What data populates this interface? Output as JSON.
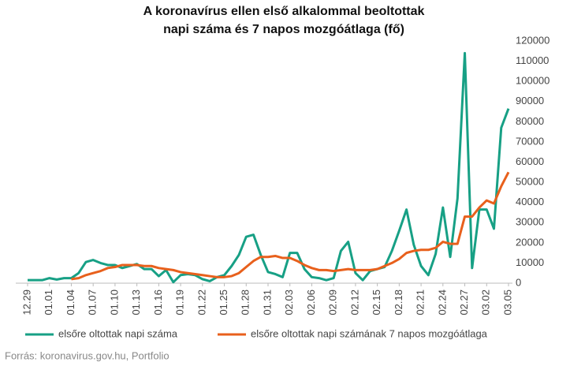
{
  "chart_data": {
    "type": "line",
    "title": [
      "A koronavírus ellen első alkalommal beoltottak",
      "napi száma és 7 napos mozgóátlaga (fő)"
    ],
    "source": "Forrás: koronavirus.gov.hu, Portfolio",
    "categories": [
      "12.29",
      null,
      null,
      "01.01",
      null,
      null,
      "01.04",
      null,
      null,
      "01.07",
      null,
      null,
      "01.10",
      null,
      null,
      "01.13",
      null,
      null,
      "01.16",
      null,
      null,
      "01.19",
      null,
      null,
      "01.22",
      null,
      null,
      "01.25",
      null,
      null,
      "01.28",
      null,
      null,
      "01.31",
      null,
      null,
      "02.03",
      null,
      null,
      "02.06",
      null,
      null,
      "02.09",
      null,
      null,
      "02.12",
      null,
      null,
      "02.15",
      null,
      null,
      "02.18",
      null,
      null,
      "02.21",
      null,
      null,
      "02.24",
      null,
      null,
      "02.27",
      null,
      null,
      "03.02",
      null,
      null,
      "03.05"
    ],
    "series": [
      {
        "name": "elsőre oltottak napi száma",
        "color": "#17a085",
        "values": [
          1500,
          1500,
          1500,
          2500,
          1800,
          2500,
          2500,
          5000,
          10500,
          11500,
          10000,
          9000,
          9000,
          7500,
          8500,
          9500,
          7000,
          7000,
          3500,
          6500,
          500,
          4000,
          4500,
          4000,
          2000,
          1000,
          3000,
          4000,
          8500,
          14000,
          23000,
          24000,
          14000,
          5500,
          4500,
          3000,
          15000,
          15000,
          7000,
          3000,
          2500,
          1500,
          2500,
          16000,
          20500,
          5000,
          1500,
          6000,
          7000,
          8000,
          16000,
          26000,
          36500,
          19000,
          8500,
          4000,
          14500,
          37500,
          13000,
          42000,
          114000,
          7500,
          36500,
          36500,
          27000,
          77000,
          86500
        ]
      },
      {
        "name": "elsőre oltottak napi számának 7 napos mozgóátlaga",
        "color": "#e8601c",
        "values": [
          null,
          null,
          null,
          null,
          null,
          null,
          2000,
          2500,
          4000,
          5000,
          6000,
          7500,
          8000,
          9000,
          9000,
          9000,
          8500,
          8500,
          7500,
          7000,
          6500,
          5500,
          5000,
          4500,
          4000,
          3500,
          3000,
          3000,
          3500,
          5000,
          8000,
          11000,
          13000,
          13000,
          13500,
          12500,
          12500,
          11000,
          9000,
          7500,
          6500,
          6500,
          6000,
          6500,
          7000,
          6500,
          6500,
          6500,
          7000,
          8500,
          10000,
          12000,
          15000,
          16000,
          16500,
          16500,
          17500,
          20500,
          19500,
          19500,
          33000,
          33000,
          37500,
          41000,
          39500,
          48000,
          55000
        ]
      }
    ],
    "ylim": [
      0,
      120000
    ],
    "yticks": [
      0,
      10000,
      20000,
      30000,
      40000,
      50000,
      60000,
      70000,
      80000,
      90000,
      100000,
      110000,
      120000
    ],
    "grid": false
  }
}
